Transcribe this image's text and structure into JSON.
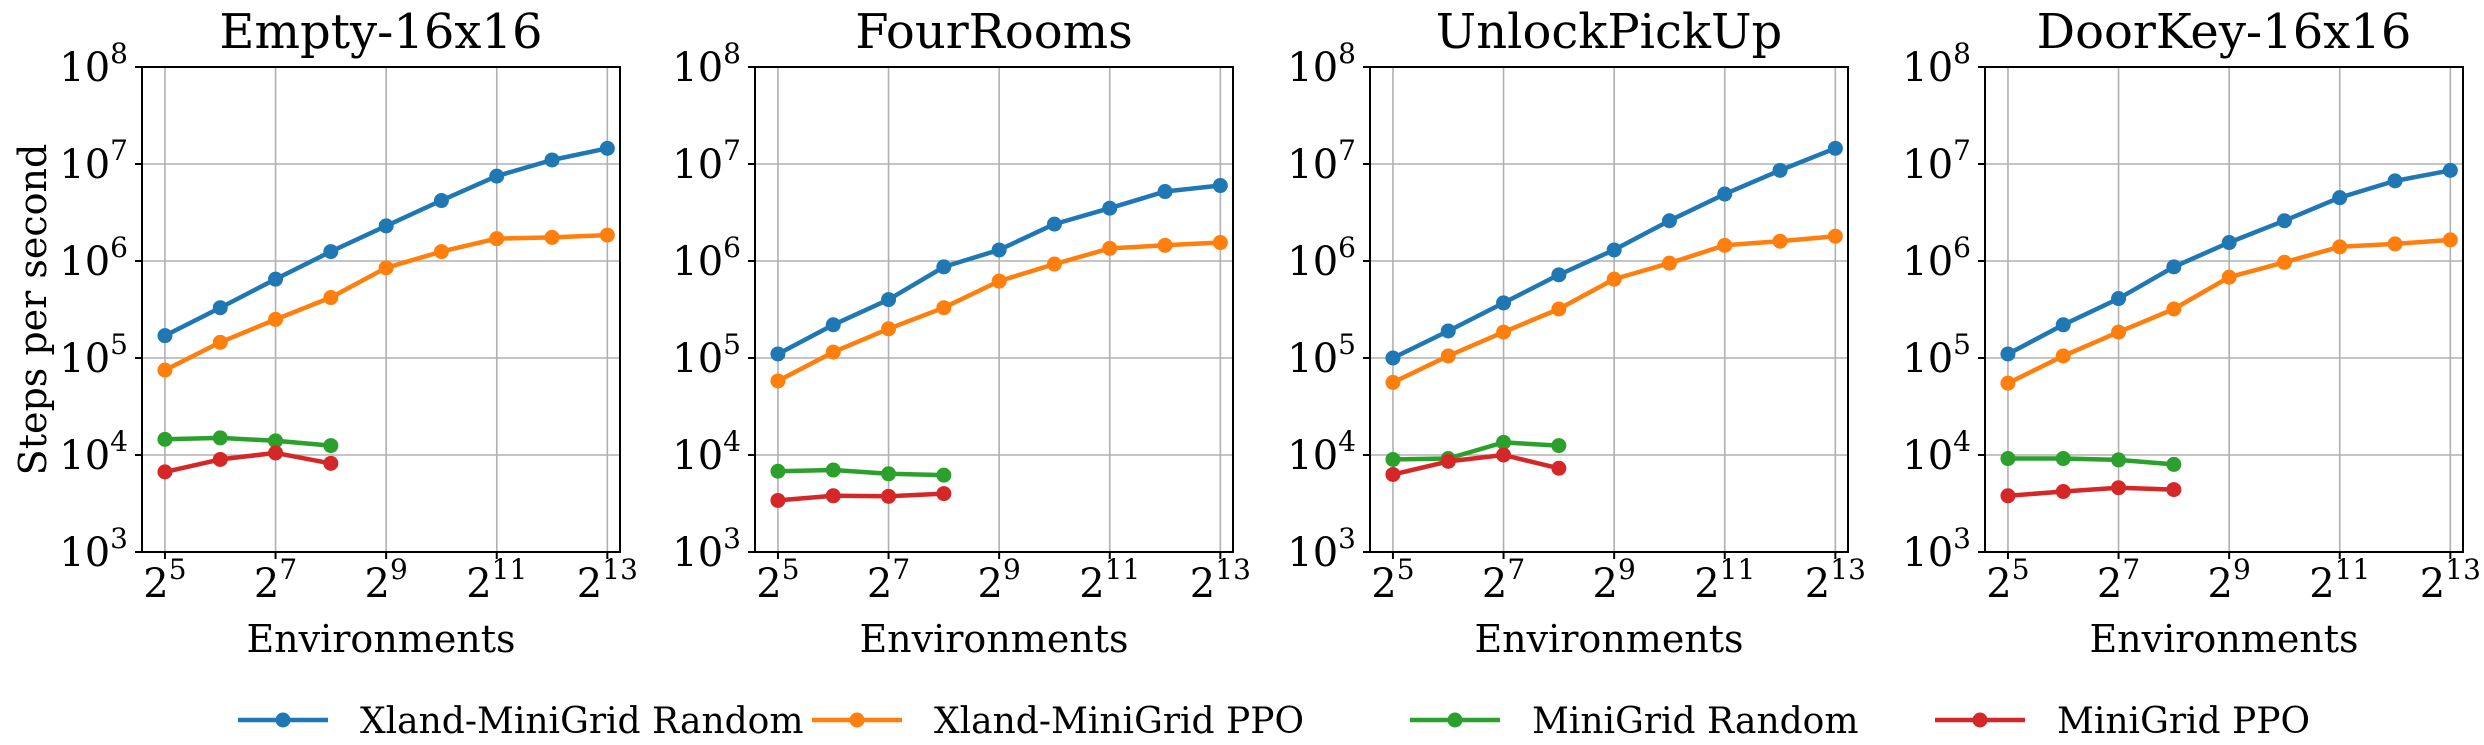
{
  "chart_data": [
    {
      "type": "line",
      "title": "Empty-16x16",
      "xlabel": "Environments",
      "ylabel": "Steps per second",
      "xscale": "log2",
      "yscale": "log10",
      "xlim": [
        24,
        9600
      ],
      "ylim": [
        1000,
        100000000
      ],
      "xticks": [
        {
          "value": 32,
          "base": "2",
          "exp": "5"
        },
        {
          "value": 128,
          "base": "2",
          "exp": "7"
        },
        {
          "value": 512,
          "base": "2",
          "exp": "9"
        },
        {
          "value": 2048,
          "base": "2",
          "exp": "11"
        },
        {
          "value": 8192,
          "base": "2",
          "exp": "13"
        }
      ],
      "yticks": [
        {
          "value": 1000,
          "base": "10",
          "exp": "3"
        },
        {
          "value": 10000,
          "base": "10",
          "exp": "4"
        },
        {
          "value": 100000,
          "base": "10",
          "exp": "5"
        },
        {
          "value": 1000000,
          "base": "10",
          "exp": "6"
        },
        {
          "value": 10000000,
          "base": "10",
          "exp": "7"
        },
        {
          "value": 100000000,
          "base": "10",
          "exp": "8"
        }
      ],
      "grid": true,
      "series": [
        {
          "name": "Xland-MiniGrid Random",
          "color": "#1f77b4",
          "x": [
            32,
            64,
            128,
            256,
            512,
            1024,
            2048,
            4096,
            8192
          ],
          "y": [
            170000,
            330000,
            650000,
            1250000,
            2300000,
            4200000,
            7500000,
            11000000,
            14500000
          ]
        },
        {
          "name": "Xland-MiniGrid PPO",
          "color": "#ff7f0e",
          "x": [
            32,
            64,
            128,
            256,
            512,
            1024,
            2048,
            4096,
            8192
          ],
          "y": [
            75000,
            145000,
            250000,
            420000,
            850000,
            1250000,
            1700000,
            1750000,
            1850000
          ]
        },
        {
          "name": "MiniGrid Random",
          "color": "#2ca02c",
          "x": [
            32,
            64,
            128,
            256
          ],
          "y": [
            14500,
            15000,
            14000,
            12500
          ]
        },
        {
          "name": "MiniGrid PPO",
          "color": "#d62728",
          "x": [
            32,
            64,
            128,
            256
          ],
          "y": [
            6700,
            9000,
            10500,
            8200
          ]
        }
      ]
    },
    {
      "type": "line",
      "title": "FourRooms",
      "xlabel": "Environments",
      "ylabel": "",
      "xscale": "log2",
      "yscale": "log10",
      "xlim": [
        24,
        9600
      ],
      "ylim": [
        1000,
        100000000
      ],
      "xticks": [
        {
          "value": 32,
          "base": "2",
          "exp": "5"
        },
        {
          "value": 128,
          "base": "2",
          "exp": "7"
        },
        {
          "value": 512,
          "base": "2",
          "exp": "9"
        },
        {
          "value": 2048,
          "base": "2",
          "exp": "11"
        },
        {
          "value": 8192,
          "base": "2",
          "exp": "13"
        }
      ],
      "yticks": [
        {
          "value": 1000,
          "base": "10",
          "exp": "3"
        },
        {
          "value": 10000,
          "base": "10",
          "exp": "4"
        },
        {
          "value": 100000,
          "base": "10",
          "exp": "5"
        },
        {
          "value": 1000000,
          "base": "10",
          "exp": "6"
        },
        {
          "value": 10000000,
          "base": "10",
          "exp": "7"
        },
        {
          "value": 100000000,
          "base": "10",
          "exp": "8"
        }
      ],
      "grid": true,
      "series": [
        {
          "name": "Xland-MiniGrid Random",
          "color": "#1f77b4",
          "x": [
            32,
            64,
            128,
            256,
            512,
            1024,
            2048,
            4096,
            8192
          ],
          "y": [
            110000,
            220000,
            400000,
            870000,
            1300000,
            2400000,
            3500000,
            5200000,
            6000000
          ]
        },
        {
          "name": "Xland-MiniGrid PPO",
          "color": "#ff7f0e",
          "x": [
            32,
            64,
            128,
            256,
            512,
            1024,
            2048,
            4096,
            8192
          ],
          "y": [
            58000,
            115000,
            200000,
            330000,
            620000,
            930000,
            1350000,
            1450000,
            1550000
          ]
        },
        {
          "name": "MiniGrid Random",
          "color": "#2ca02c",
          "x": [
            32,
            64,
            128,
            256
          ],
          "y": [
            6800,
            7000,
            6400,
            6200
          ]
        },
        {
          "name": "MiniGrid PPO",
          "color": "#d62728",
          "x": [
            32,
            64,
            128,
            256
          ],
          "y": [
            3400,
            3800,
            3750,
            4000
          ]
        }
      ]
    },
    {
      "type": "line",
      "title": "UnlockPickUp",
      "xlabel": "Environments",
      "ylabel": "",
      "xscale": "log2",
      "yscale": "log10",
      "xlim": [
        24,
        9600
      ],
      "ylim": [
        1000,
        100000000
      ],
      "xticks": [
        {
          "value": 32,
          "base": "2",
          "exp": "5"
        },
        {
          "value": 128,
          "base": "2",
          "exp": "7"
        },
        {
          "value": 512,
          "base": "2",
          "exp": "9"
        },
        {
          "value": 2048,
          "base": "2",
          "exp": "11"
        },
        {
          "value": 8192,
          "base": "2",
          "exp": "13"
        }
      ],
      "yticks": [
        {
          "value": 1000,
          "base": "10",
          "exp": "3"
        },
        {
          "value": 10000,
          "base": "10",
          "exp": "4"
        },
        {
          "value": 100000,
          "base": "10",
          "exp": "5"
        },
        {
          "value": 1000000,
          "base": "10",
          "exp": "6"
        },
        {
          "value": 10000000,
          "base": "10",
          "exp": "7"
        },
        {
          "value": 100000000,
          "base": "10",
          "exp": "8"
        }
      ],
      "grid": true,
      "series": [
        {
          "name": "Xland-MiniGrid Random",
          "color": "#1f77b4",
          "x": [
            32,
            64,
            128,
            256,
            512,
            1024,
            2048,
            4096,
            8192
          ],
          "y": [
            100000,
            190000,
            370000,
            720000,
            1300000,
            2600000,
            4900000,
            8600000,
            14500000
          ]
        },
        {
          "name": "Xland-MiniGrid PPO",
          "color": "#ff7f0e",
          "x": [
            32,
            64,
            128,
            256,
            512,
            1024,
            2048,
            4096,
            8192
          ],
          "y": [
            56000,
            105000,
            185000,
            320000,
            650000,
            950000,
            1450000,
            1600000,
            1800000
          ]
        },
        {
          "name": "MiniGrid Random",
          "color": "#2ca02c",
          "x": [
            32,
            64,
            128,
            256
          ],
          "y": [
            9000,
            9200,
            13500,
            12500
          ]
        },
        {
          "name": "MiniGrid PPO",
          "color": "#d62728",
          "x": [
            32,
            64,
            128,
            256
          ],
          "y": [
            6300,
            8600,
            10000,
            7300
          ]
        }
      ]
    },
    {
      "type": "line",
      "title": "DoorKey-16x16",
      "xlabel": "Environments",
      "ylabel": "",
      "xscale": "log2",
      "yscale": "log10",
      "xlim": [
        24,
        9600
      ],
      "ylim": [
        1000,
        100000000
      ],
      "xticks": [
        {
          "value": 32,
          "base": "2",
          "exp": "5"
        },
        {
          "value": 128,
          "base": "2",
          "exp": "7"
        },
        {
          "value": 512,
          "base": "2",
          "exp": "9"
        },
        {
          "value": 2048,
          "base": "2",
          "exp": "11"
        },
        {
          "value": 8192,
          "base": "2",
          "exp": "13"
        }
      ],
      "yticks": [
        {
          "value": 1000,
          "base": "10",
          "exp": "3"
        },
        {
          "value": 10000,
          "base": "10",
          "exp": "4"
        },
        {
          "value": 100000,
          "base": "10",
          "exp": "5"
        },
        {
          "value": 1000000,
          "base": "10",
          "exp": "6"
        },
        {
          "value": 10000000,
          "base": "10",
          "exp": "7"
        },
        {
          "value": 100000000,
          "base": "10",
          "exp": "8"
        }
      ],
      "grid": true,
      "series": [
        {
          "name": "Xland-MiniGrid Random",
          "color": "#1f77b4",
          "x": [
            32,
            64,
            128,
            256,
            512,
            1024,
            2048,
            4096,
            8192
          ],
          "y": [
            110000,
            220000,
            410000,
            870000,
            1550000,
            2600000,
            4500000,
            6700000,
            8600000
          ]
        },
        {
          "name": "Xland-MiniGrid PPO",
          "color": "#ff7f0e",
          "x": [
            32,
            64,
            128,
            256,
            512,
            1024,
            2048,
            4096,
            8192
          ],
          "y": [
            55000,
            105000,
            185000,
            320000,
            680000,
            970000,
            1400000,
            1500000,
            1650000
          ]
        },
        {
          "name": "MiniGrid Random",
          "color": "#2ca02c",
          "x": [
            32,
            64,
            128,
            256
          ],
          "y": [
            9200,
            9200,
            8900,
            8000
          ]
        },
        {
          "name": "MiniGrid PPO",
          "color": "#d62728",
          "x": [
            32,
            64,
            128,
            256
          ],
          "y": [
            3800,
            4200,
            4600,
            4400
          ]
        }
      ]
    }
  ],
  "legend": {
    "position": "bottom-center",
    "entries": [
      {
        "label": "Xland-MiniGrid Random",
        "color": "#1f77b4"
      },
      {
        "label": "Xland-MiniGrid PPO",
        "color": "#ff7f0e"
      },
      {
        "label": "MiniGrid Random",
        "color": "#2ca02c"
      },
      {
        "label": "MiniGrid PPO",
        "color": "#d62728"
      }
    ]
  }
}
